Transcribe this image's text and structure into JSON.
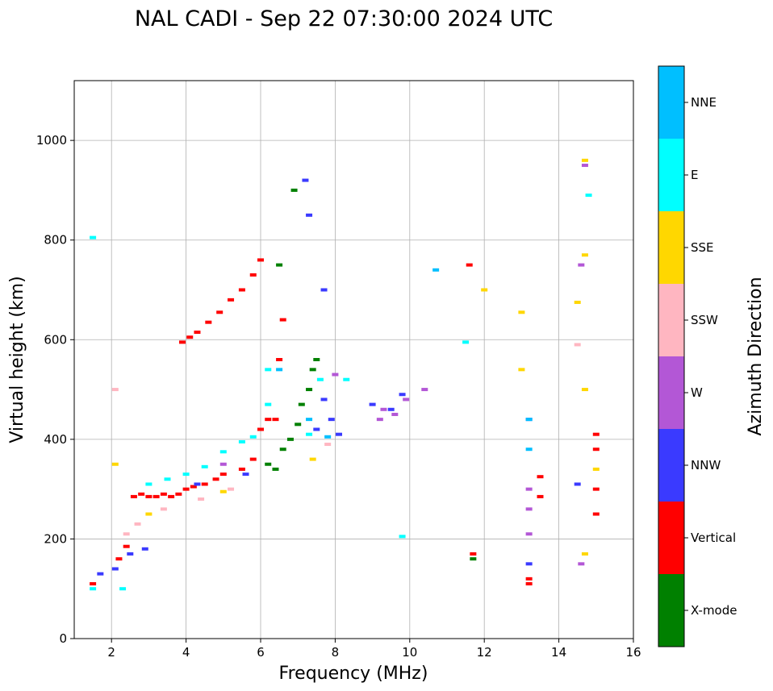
{
  "chart_data": {
    "type": "scatter",
    "title": "NAL CADI - Sep 22 07:30:00 2024 UTC",
    "xlabel": "Frequency (MHz)",
    "ylabel": "Virtual height (km)",
    "xlim": [
      1,
      16
    ],
    "ylim": [
      0,
      1120
    ],
    "xticks": [
      2,
      4,
      6,
      8,
      10,
      12,
      14,
      16
    ],
    "yticks": [
      0,
      200,
      400,
      600,
      800,
      1000
    ],
    "grid": true,
    "colorbar": {
      "label": "Azimuth Direction",
      "categories": [
        {
          "name": "X-mode",
          "color": "#008000"
        },
        {
          "name": "Vertical",
          "color": "#ff0000"
        },
        {
          "name": "NNW",
          "color": "#3a3aff"
        },
        {
          "name": "W",
          "color": "#b357d6"
        },
        {
          "name": "SSW",
          "color": "#ffb6c1"
        },
        {
          "name": "SSE",
          "color": "#ffd700"
        },
        {
          "name": "E",
          "color": "#00ffff"
        },
        {
          "name": "NNE",
          "color": "#00bfff"
        }
      ]
    },
    "series": [
      {
        "name": "Vertical",
        "points": [
          [
            1.5,
            110
          ],
          [
            2.2,
            160
          ],
          [
            2.4,
            185
          ],
          [
            2.6,
            285
          ],
          [
            2.8,
            290
          ],
          [
            3.0,
            285
          ],
          [
            3.2,
            285
          ],
          [
            3.4,
            290
          ],
          [
            3.6,
            285
          ],
          [
            3.8,
            290
          ],
          [
            4.0,
            300
          ],
          [
            4.2,
            305
          ],
          [
            4.5,
            310
          ],
          [
            4.8,
            320
          ],
          [
            5.0,
            330
          ],
          [
            5.5,
            340
          ],
          [
            5.8,
            360
          ],
          [
            6.0,
            420
          ],
          [
            6.2,
            440
          ],
          [
            6.4,
            440
          ],
          [
            6.5,
            560
          ],
          [
            6.6,
            640
          ],
          [
            3.9,
            595
          ],
          [
            4.1,
            605
          ],
          [
            4.3,
            615
          ],
          [
            4.6,
            635
          ],
          [
            4.9,
            655
          ],
          [
            5.2,
            680
          ],
          [
            5.5,
            700
          ],
          [
            5.8,
            730
          ],
          [
            6.0,
            760
          ],
          [
            13.2,
            110
          ],
          [
            13.2,
            120
          ],
          [
            13.5,
            325
          ],
          [
            13.5,
            285
          ],
          [
            15.0,
            250
          ],
          [
            15.0,
            300
          ],
          [
            15.0,
            380
          ],
          [
            15.0,
            410
          ],
          [
            11.7,
            170
          ],
          [
            11.6,
            750
          ]
        ]
      },
      {
        "name": "X-mode",
        "points": [
          [
            6.2,
            350
          ],
          [
            6.4,
            340
          ],
          [
            6.6,
            380
          ],
          [
            6.8,
            400
          ],
          [
            7.0,
            430
          ],
          [
            7.1,
            470
          ],
          [
            7.3,
            500
          ],
          [
            7.4,
            540
          ],
          [
            7.5,
            560
          ],
          [
            6.5,
            750
          ],
          [
            6.9,
            900
          ],
          [
            11.7,
            160
          ]
        ]
      },
      {
        "name": "NNW",
        "points": [
          [
            1.7,
            130
          ],
          [
            2.1,
            140
          ],
          [
            2.5,
            170
          ],
          [
            2.9,
            180
          ],
          [
            4.3,
            310
          ],
          [
            5.6,
            330
          ],
          [
            7.5,
            420
          ],
          [
            7.7,
            480
          ],
          [
            7.9,
            440
          ],
          [
            8.1,
            410
          ],
          [
            9.0,
            470
          ],
          [
            9.5,
            460
          ],
          [
            9.8,
            490
          ],
          [
            13.2,
            150
          ],
          [
            13.2,
            440
          ],
          [
            14.5,
            310
          ],
          [
            7.3,
            850
          ],
          [
            7.2,
            920
          ],
          [
            7.7,
            700
          ]
        ]
      },
      {
        "name": "W",
        "points": [
          [
            9.2,
            440
          ],
          [
            9.3,
            460
          ],
          [
            9.6,
            450
          ],
          [
            9.9,
            480
          ],
          [
            10.4,
            500
          ],
          [
            13.2,
            210
          ],
          [
            13.2,
            260
          ],
          [
            13.2,
            300
          ],
          [
            14.6,
            150
          ],
          [
            14.7,
            950
          ],
          [
            14.6,
            750
          ],
          [
            5.0,
            350
          ],
          [
            8.0,
            530
          ]
        ]
      },
      {
        "name": "SSW",
        "points": [
          [
            2.1,
            500
          ],
          [
            2.4,
            210
          ],
          [
            2.7,
            230
          ],
          [
            3.4,
            260
          ],
          [
            4.4,
            280
          ],
          [
            5.2,
            300
          ],
          [
            7.8,
            390
          ],
          [
            14.5,
            590
          ]
        ]
      },
      {
        "name": "SSE",
        "points": [
          [
            2.1,
            350
          ],
          [
            3.0,
            250
          ],
          [
            5.0,
            295
          ],
          [
            7.4,
            360
          ],
          [
            13.0,
            540
          ],
          [
            13.0,
            655
          ],
          [
            14.5,
            675
          ],
          [
            14.7,
            500
          ],
          [
            14.7,
            770
          ],
          [
            14.7,
            960
          ],
          [
            14.7,
            170
          ],
          [
            15.0,
            340
          ],
          [
            12.0,
            700
          ]
        ]
      },
      {
        "name": "E",
        "points": [
          [
            1.5,
            100
          ],
          [
            2.3,
            100
          ],
          [
            3.0,
            310
          ],
          [
            3.5,
            320
          ],
          [
            4.0,
            330
          ],
          [
            4.5,
            345
          ],
          [
            5.0,
            375
          ],
          [
            5.5,
            395
          ],
          [
            5.8,
            405
          ],
          [
            6.2,
            470
          ],
          [
            6.2,
            540
          ],
          [
            7.3,
            410
          ],
          [
            7.6,
            520
          ],
          [
            8.3,
            520
          ],
          [
            9.8,
            205
          ],
          [
            11.5,
            595
          ],
          [
            14.8,
            890
          ],
          [
            1.5,
            805
          ]
        ]
      },
      {
        "name": "NNE",
        "points": [
          [
            6.5,
            540
          ],
          [
            7.3,
            440
          ],
          [
            7.8,
            405
          ],
          [
            13.2,
            440
          ],
          [
            13.2,
            380
          ],
          [
            10.7,
            740
          ]
        ]
      }
    ]
  }
}
